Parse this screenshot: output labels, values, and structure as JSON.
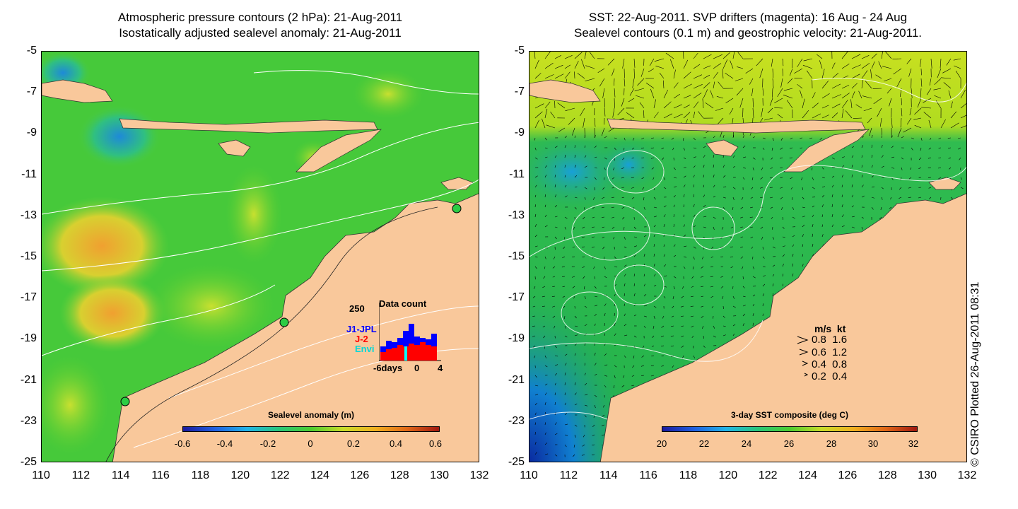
{
  "left_panel": {
    "title_line1": "Atmospheric pressure contours (2 hPa): 21-Aug-2011",
    "title_line2": "Isostatically adjusted sealevel anomaly: 21-Aug-2011",
    "colorbar": {
      "title": "Sealevel anomaly (m)",
      "ticks": [
        "-0.6",
        "-0.4",
        "-0.2",
        "0",
        "0.2",
        "0.4",
        "0.6"
      ]
    },
    "inset": {
      "title": "Data count",
      "ymax": "250",
      "series": [
        {
          "name": "J1-JPL",
          "color": "#0000ff"
        },
        {
          "name": "J-2",
          "color": "#ff0000"
        },
        {
          "name": "Envi",
          "color": "#00ffff"
        }
      ],
      "xlabels": [
        "-6days",
        "0",
        "4"
      ]
    }
  },
  "right_panel": {
    "title_line1": "SST: 22-Aug-2011. SVP drifters (magenta): 16 Aug - 24 Aug",
    "title_line2": "Sealevel contours (0.1 m) and geostrophic velocity: 21-Aug-2011.",
    "colorbar": {
      "title": "3-day SST composite (deg C)",
      "ticks": [
        "20",
        "22",
        "24",
        "26",
        "28",
        "30",
        "32"
      ]
    },
    "vector_legend": {
      "header": "m/s  kt",
      "rows": [
        "0.8  1.6",
        "0.6  1.2",
        "0.4  0.8",
        "0.2  0.4"
      ]
    }
  },
  "axes": {
    "y_ticks": [
      "-5",
      "-7",
      "-9",
      "-11",
      "-13",
      "-15",
      "-17",
      "-19",
      "-21",
      "-23",
      "-25"
    ],
    "x_ticks": [
      "110",
      "112",
      "114",
      "116",
      "118",
      "120",
      "122",
      "124",
      "126",
      "128",
      "130",
      "132"
    ]
  },
  "credit": "© CSIRO Plotted 26-Aug-2011 08:31",
  "colors": {
    "land": "#f9c89b",
    "ocean_anomaly": "#44cc22",
    "ocean_sst": "#22b844",
    "cold": "#1a6fd8",
    "warm": "#f5a623"
  }
}
